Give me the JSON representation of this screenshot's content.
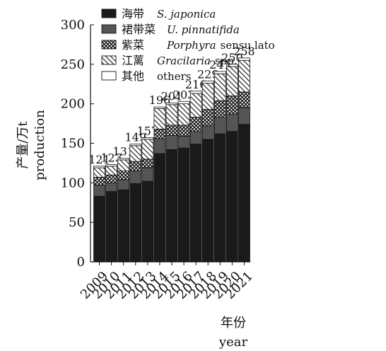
{
  "chart_data": {
    "type": "bar",
    "stacked": true,
    "categories": [
      "2009",
      "2010",
      "2011",
      "2012",
      "2013",
      "2014",
      "2015",
      "2016",
      "2017",
      "2018",
      "2019",
      "2020",
      "2021"
    ],
    "totals": [
      "121",
      "123",
      "131",
      "149",
      "157",
      "196",
      "201",
      "203",
      "216",
      "229",
      "241",
      "250",
      "258"
    ],
    "series": [
      {
        "name": "海带",
        "name_en": "S. japonica",
        "name_en_suffix": "",
        "pattern": "solid-black",
        "values": [
          83,
          89,
          91,
          99,
          102,
          137,
          142,
          144,
          149,
          155,
          162,
          165,
          174
        ]
      },
      {
        "name": "裙带菜",
        "name_en": "U. pinnatifida",
        "name_en_suffix": "",
        "pattern": "solid-gray",
        "values": [
          14,
          11,
          13,
          16,
          17,
          19,
          18,
          15,
          16,
          17,
          21,
          22,
          21
        ]
      },
      {
        "name": "紫菜",
        "name_en": "Porphyra",
        "name_en_suffix": "sensu lato",
        "pattern": "crosshatch",
        "values": [
          10,
          10,
          11,
          12,
          11,
          12,
          13,
          14,
          18,
          21,
          21,
          23,
          20
        ]
      },
      {
        "name": "江蓠",
        "name_en": "Gracilaria",
        "name_en_suffix": "spp.",
        "pattern": "diagonal",
        "values": [
          12,
          11,
          14,
          20,
          25,
          26,
          26,
          27,
          30,
          33,
          34,
          37,
          40
        ]
      },
      {
        "name": "其他",
        "name_en": "others",
        "name_en_suffix": "",
        "pattern": "white",
        "values": [
          2,
          2,
          2,
          2,
          2,
          2,
          2,
          3,
          3,
          3,
          3,
          3,
          3
        ]
      }
    ],
    "ylim": [
      0,
      300
    ],
    "yticks": [
      "0",
      "50",
      "100",
      "150",
      "200",
      "250",
      "300"
    ],
    "xlabel_cn": "年份",
    "xlabel_en": "year",
    "ylabel_cn": "产量/万t",
    "ylabel_en": "production",
    "legend_position": "top-left",
    "colors": {
      "black": "#1a1a1a",
      "gray": "#555555",
      "edge": "#111111"
    }
  }
}
